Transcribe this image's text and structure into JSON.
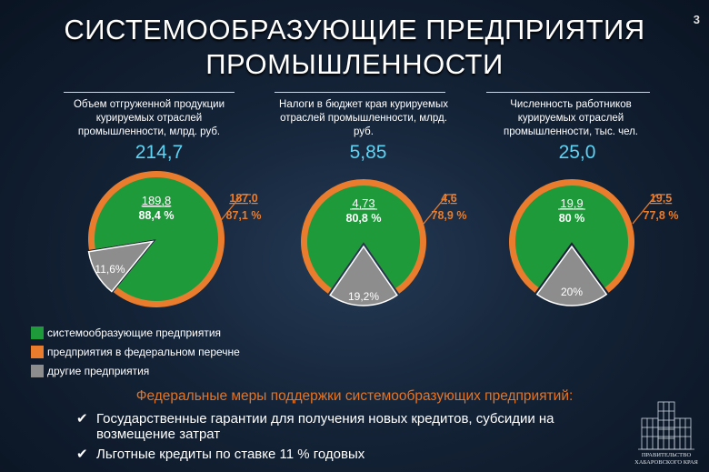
{
  "page": {
    "title_line1": "СИСТЕМООБРАЗУЮЩИЕ ПРЕДПРИЯТИЯ",
    "title_line2": "ПРОМЫШЛЕННОСТИ",
    "page_number": "3"
  },
  "colors": {
    "green": "#1e9a3a",
    "orange": "#ea7d2d",
    "gray": "#8d8d8d",
    "cyan": "#5fd3f3"
  },
  "chart_data": [
    {
      "type": "pie",
      "title": "Объем отгруженной продукции курируемых отраслей промышленности, млрд. руб.",
      "total": "214,7",
      "series": [
        {
          "name": "системообразующие предприятия",
          "value_label": "189,8",
          "percent_label": "88,4 %",
          "percent": 88.4
        },
        {
          "name": "другие предприятия",
          "percent_label": "11,6%",
          "percent": 11.6
        }
      ],
      "federal": {
        "value_label": "187,0",
        "percent_label": "87,1 %",
        "percent": 87.1
      }
    },
    {
      "type": "pie",
      "title": "Налоги в бюджет края курируемых отраслей промышленности, млрд. руб.",
      "total": "5,85",
      "series": [
        {
          "name": "системообразующие предприятия",
          "value_label": "4,73",
          "percent_label": "80,8 %",
          "percent": 80.8
        },
        {
          "name": "другие предприятия",
          "percent_label": "19,2%",
          "percent": 19.2
        }
      ],
      "federal": {
        "value_label": "4,6",
        "percent_label": "78,9 %",
        "percent": 78.9
      }
    },
    {
      "type": "pie",
      "title": "Численность работников курируемых отраслей промышленности, тыс. чел.",
      "total": "25,0",
      "series": [
        {
          "name": "системообразующие предприятия",
          "value_label": "19,9",
          "percent_label": "80 %",
          "percent": 80
        },
        {
          "name": "другие предприятия",
          "percent_label": "20%",
          "percent": 20
        }
      ],
      "federal": {
        "value_label": "19,5",
        "percent_label": "77,8 %",
        "percent": 77.8
      }
    }
  ],
  "legend": [
    {
      "label": "системообразующие предприятия",
      "color": "#1e9a3a"
    },
    {
      "label": "предприятия в федеральном перечне",
      "color": "#ea7d2d"
    },
    {
      "label": "другие предприятия",
      "color": "#8d8d8d"
    }
  ],
  "support": {
    "title": "Федеральные меры поддержки системообразующих предприятий:",
    "items": [
      "Государственные гарантии для получения новых кредитов, субсидии на возмещение затрат",
      "Льготные кредиты по ставке 11 % годовых"
    ]
  },
  "logo": {
    "line1": "ПРАВИТЕЛЬСТВО",
    "line2": "ХАБАРОВСКОГО КРАЯ"
  }
}
